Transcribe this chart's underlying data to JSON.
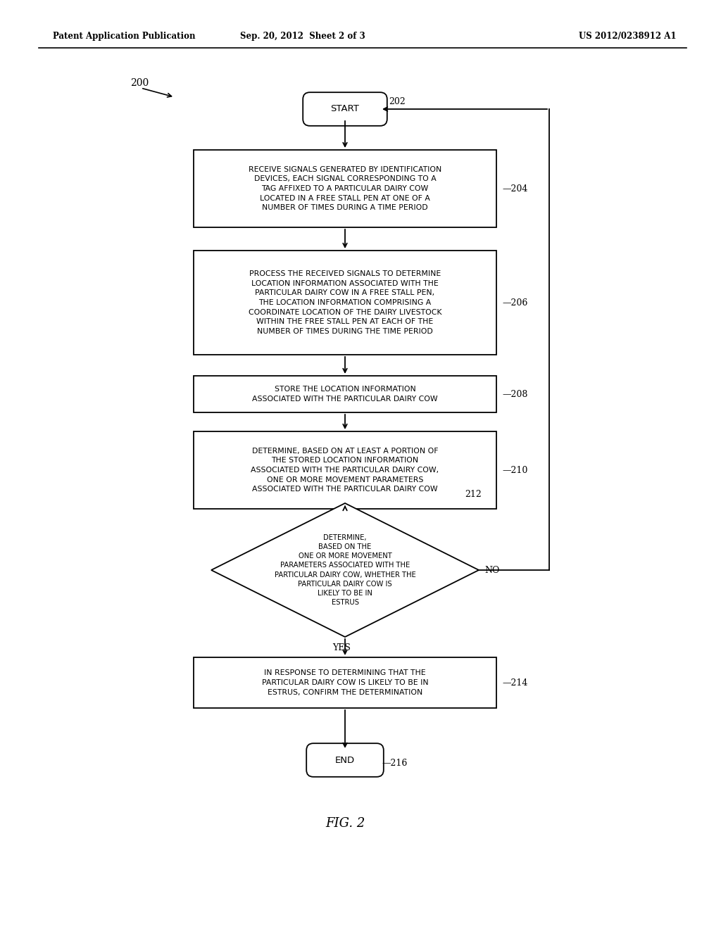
{
  "bg_color": "#ffffff",
  "header_left": "Patent Application Publication",
  "header_mid": "Sep. 20, 2012  Sheet 2 of 3",
  "header_right": "US 2012/0238912 A1",
  "fig_label": "FIG. 2",
  "diagram_label": "200",
  "box204_text": "RECEIVE SIGNALS GENERATED BY IDENTIFICATION\nDEVICES, EACH SIGNAL CORRESPONDING TO A\nTAG AFFIXED TO A PARTICULAR DAIRY COW\nLOCATED IN A FREE STALL PEN AT ONE OF A\nNUMBER OF TIMES DURING A TIME PERIOD",
  "box206_text": "PROCESS THE RECEIVED SIGNALS TO DETERMINE\nLOCATION INFORMATION ASSOCIATED WITH THE\nPARTICULAR DAIRY COW IN A FREE STALL PEN,\nTHE LOCATION INFORMATION COMPRISING A\nCOORDINATE LOCATION OF THE DAIRY LIVESTOCK\nWITHIN THE FREE STALL PEN AT EACH OF THE\nNUMBER OF TIMES DURING THE TIME PERIOD",
  "box208_text": "STORE THE LOCATION INFORMATION\nASSOCIATED WITH THE PARTICULAR DAIRY COW",
  "box210_text": "DETERMINE, BASED ON AT LEAST A PORTION OF\nTHE STORED LOCATION INFORMATION\nASSOCIATED WITH THE PARTICULAR DAIRY COW,\nONE OR MORE MOVEMENT PARAMETERS\nASSOCIATED WITH THE PARTICULAR DAIRY COW",
  "diamond212_text": "DETERMINE,\nBASED ON THE\nONE OR MORE MOVEMENT\nPARAMETERS ASSOCIATED WITH THE\nPARTICULAR DAIRY COW, WHETHER THE\nPARTICULAR DAIRY COW IS\nLIKELY TO BE IN\nESTRUS",
  "box214_text": "IN RESPONSE TO DETERMINING THAT THE\nPARTICULAR DAIRY COW IS LIKELY TO BE IN\nESTRUS, CONFIRM THE DETERMINATION",
  "ref202": "202",
  "ref204": "204",
  "ref206": "206",
  "ref208": "208",
  "ref210": "210",
  "ref212": "212",
  "ref214": "214",
  "ref216": "216",
  "text_color": "#000000",
  "line_color": "#000000"
}
